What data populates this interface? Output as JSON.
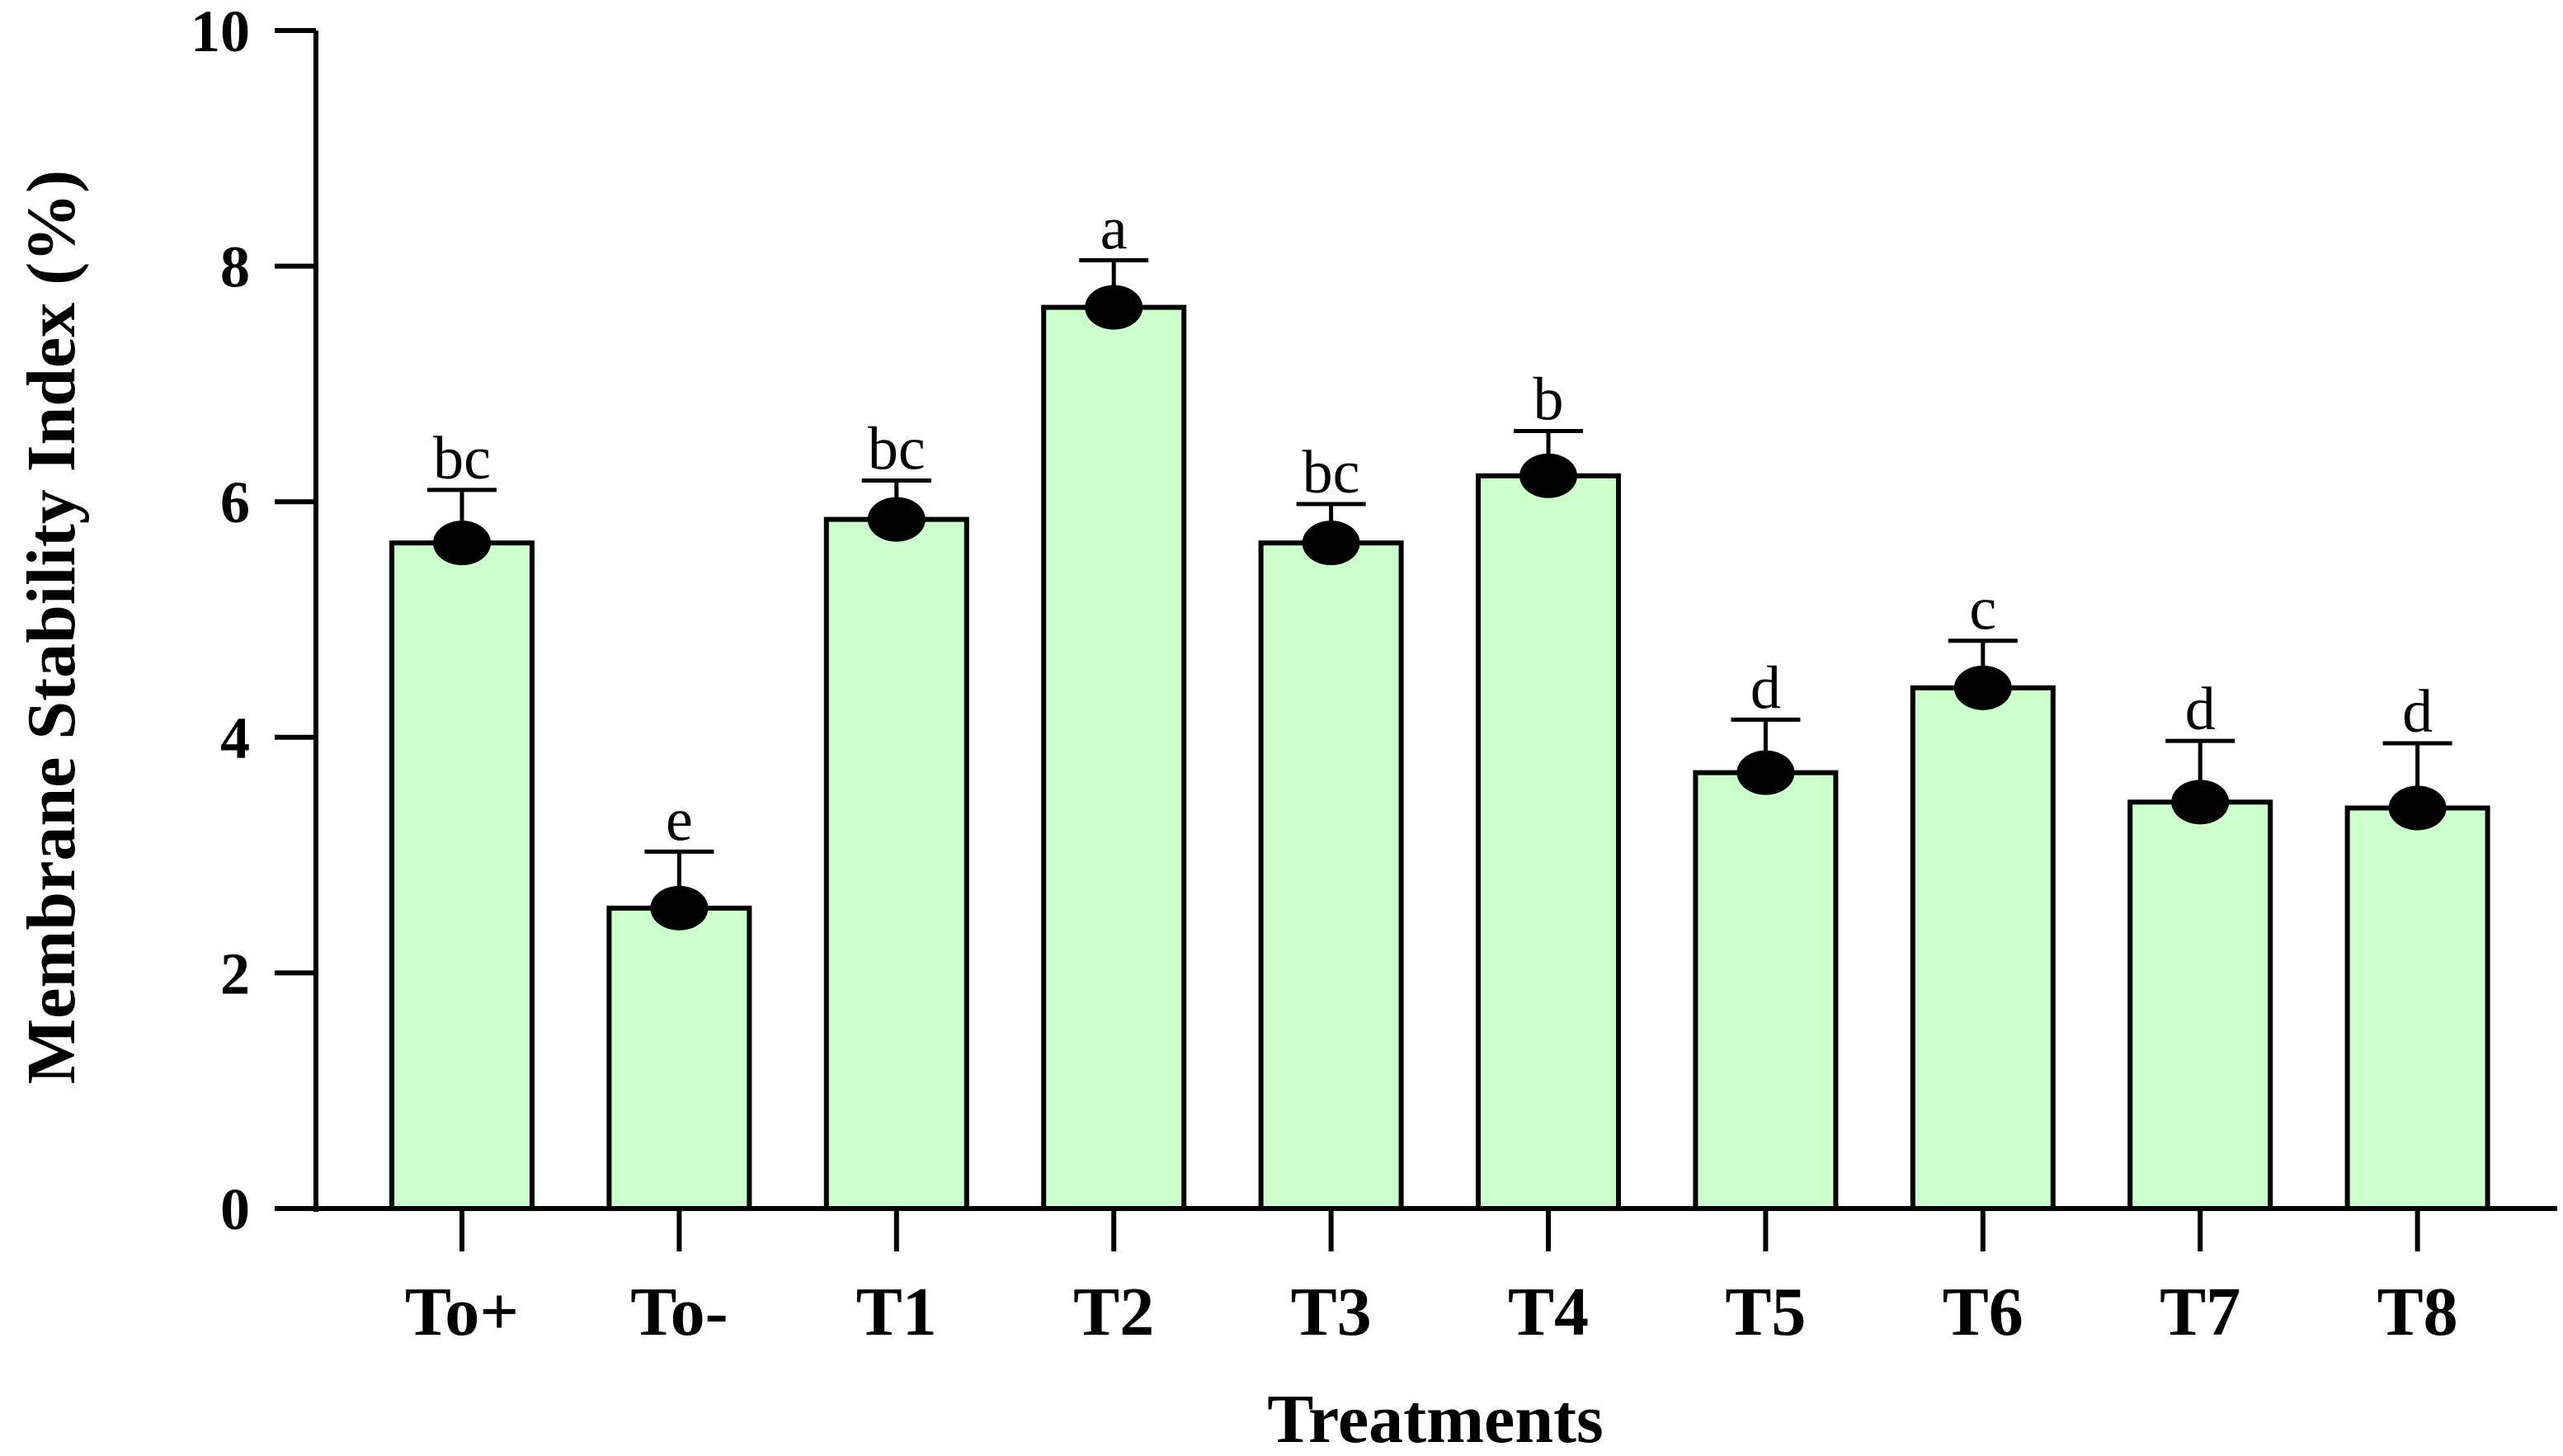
{
  "chart_data": {
    "type": "bar",
    "xlabel": "Treatments",
    "ylabel": "Membrane Stability Index (%)",
    "ylim": [
      0,
      10
    ],
    "yticks": [
      0,
      2,
      4,
      6,
      8,
      10
    ],
    "grid": false,
    "legend": "none",
    "categories": [
      "To+",
      "To-",
      "T1",
      "T2",
      "T3",
      "T4",
      "T5",
      "T6",
      "T7",
      "T8"
    ],
    "values": [
      5.65,
      2.55,
      5.85,
      7.65,
      5.65,
      6.22,
      3.7,
      4.42,
      3.45,
      3.4
    ],
    "errors": [
      0.45,
      0.48,
      0.33,
      0.4,
      0.33,
      0.38,
      0.45,
      0.4,
      0.52,
      0.55
    ],
    "significance_letters": [
      "bc",
      "e",
      "bc",
      "a",
      "bc",
      "b",
      "d",
      "c",
      "d",
      "d"
    ],
    "colors": {
      "bar_fill": "#ccffcc",
      "bar_stroke": "#000000",
      "point": "#000000"
    }
  }
}
